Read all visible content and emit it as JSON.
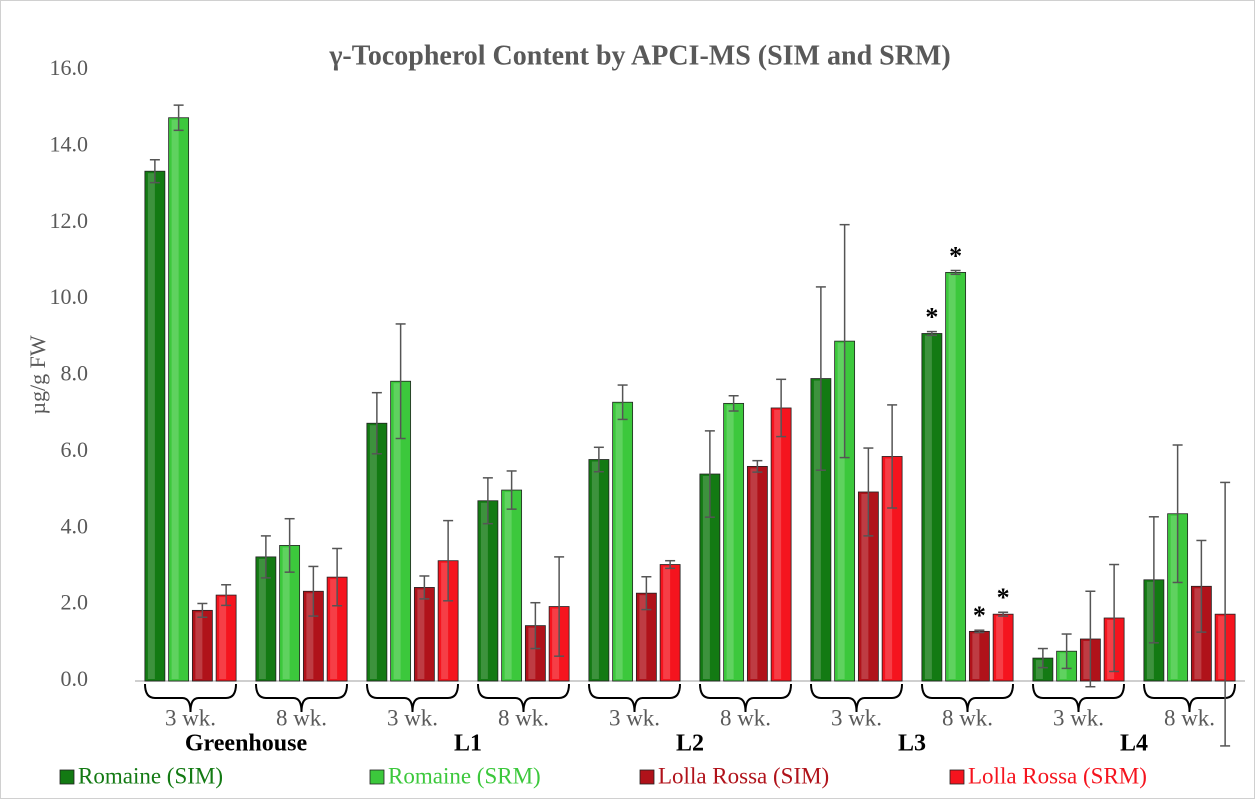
{
  "chart_data": {
    "type": "bar",
    "title": "γ-Tocopherol Content by APCI-MS (SIM and SRM)",
    "ylabel": "µg/g FW",
    "categories": [
      "3 wk.",
      "8 wk.",
      "3 wk.",
      "8 wk.",
      "3 wk.",
      "8 wk.",
      "3 wk.",
      "8 wk.",
      "3 wk.",
      "8 wk."
    ],
    "groups": [
      "Greenhouse",
      "L1",
      "L2",
      "L3",
      "L4"
    ],
    "ylim": [
      0,
      16
    ],
    "yticks": [
      {
        "value": 0,
        "label": "0.0"
      },
      {
        "value": 2,
        "label": "2.0"
      },
      {
        "value": 4,
        "label": "4.0"
      },
      {
        "value": 6,
        "label": "6.0"
      },
      {
        "value": 8,
        "label": "8.0"
      },
      {
        "value": 10,
        "label": "10.0"
      },
      {
        "value": 12,
        "label": "12.0"
      },
      {
        "value": 14,
        "label": "14.0"
      },
      {
        "value": 16,
        "label": "16.0"
      }
    ],
    "grid": false,
    "legend": "bottom",
    "series": [
      {
        "name": "Romaine (SIM)",
        "color": "#137a13",
        "values": [
          13.35,
          3.25,
          6.75,
          4.72,
          5.8,
          5.42,
          7.92,
          9.1,
          0.6,
          2.65
        ],
        "errors": [
          0.3,
          0.55,
          0.8,
          0.6,
          0.32,
          1.13,
          2.4,
          0.05,
          0.25,
          1.65
        ],
        "annotations": [
          null,
          null,
          null,
          null,
          null,
          null,
          null,
          "*",
          null,
          null
        ]
      },
      {
        "name": "Romaine (SRM)",
        "color": "#3cc83c",
        "values": [
          14.75,
          3.55,
          7.85,
          5.0,
          7.3,
          7.27,
          8.9,
          10.7,
          0.78,
          4.38
        ],
        "errors": [
          0.33,
          0.7,
          1.5,
          0.5,
          0.45,
          0.2,
          3.05,
          0.05,
          0.45,
          1.8
        ],
        "annotations": [
          null,
          null,
          null,
          null,
          null,
          null,
          null,
          "*",
          null,
          null
        ]
      },
      {
        "name": "Lolla Rossa (SIM)",
        "color": "#b0121a",
        "values": [
          1.85,
          2.35,
          2.45,
          1.45,
          2.3,
          5.62,
          4.95,
          1.3,
          1.1,
          2.48
        ],
        "errors": [
          0.18,
          0.65,
          0.3,
          0.6,
          0.43,
          0.15,
          1.15,
          0.03,
          1.25,
          1.2
        ],
        "annotations": [
          null,
          null,
          null,
          null,
          null,
          null,
          null,
          "*",
          null,
          null
        ]
      },
      {
        "name": "Lolla Rossa (SRM)",
        "color": "#f5141e",
        "values": [
          2.25,
          2.72,
          3.15,
          1.95,
          3.05,
          7.15,
          5.88,
          1.75,
          1.65,
          1.75
        ],
        "errors": [
          0.27,
          0.75,
          1.05,
          1.3,
          0.1,
          0.75,
          1.35,
          0.05,
          1.4,
          3.45
        ],
        "annotations": [
          null,
          null,
          null,
          null,
          null,
          null,
          null,
          "*",
          null,
          null
        ]
      }
    ]
  }
}
